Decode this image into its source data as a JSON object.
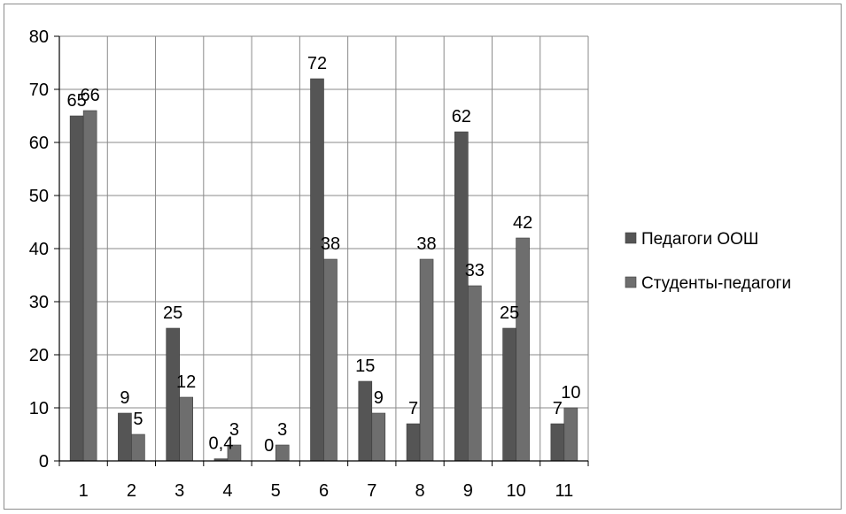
{
  "chart_data": {
    "type": "bar",
    "categories": [
      "1",
      "2",
      "3",
      "4",
      "5",
      "6",
      "7",
      "8",
      "9",
      "10",
      "11"
    ],
    "series": [
      {
        "name": "Педагоги ООШ",
        "values": [
          65,
          9,
          25,
          0.4,
          0,
          72,
          15,
          7,
          62,
          25,
          7
        ],
        "labels": [
          "65",
          "9",
          "25",
          "0,4",
          "0",
          "72",
          "15",
          "7",
          "62",
          "25",
          "7"
        ],
        "color": "#555555"
      },
      {
        "name": "Студенты-педагоги",
        "values": [
          66,
          5,
          12,
          3,
          3,
          38,
          9,
          38,
          33,
          42,
          10
        ],
        "labels": [
          "66",
          "5",
          "12",
          "3",
          "3",
          "38",
          "9",
          "38",
          "33",
          "42",
          "10"
        ],
        "color": "#6e6e6e"
      }
    ],
    "yticks": [
      "0",
      "10",
      "20",
      "30",
      "40",
      "50",
      "60",
      "70",
      "80"
    ],
    "ylim": [
      0,
      80
    ],
    "grid": true,
    "legend_position": "right",
    "title": "",
    "xlabel": "",
    "ylabel": ""
  }
}
